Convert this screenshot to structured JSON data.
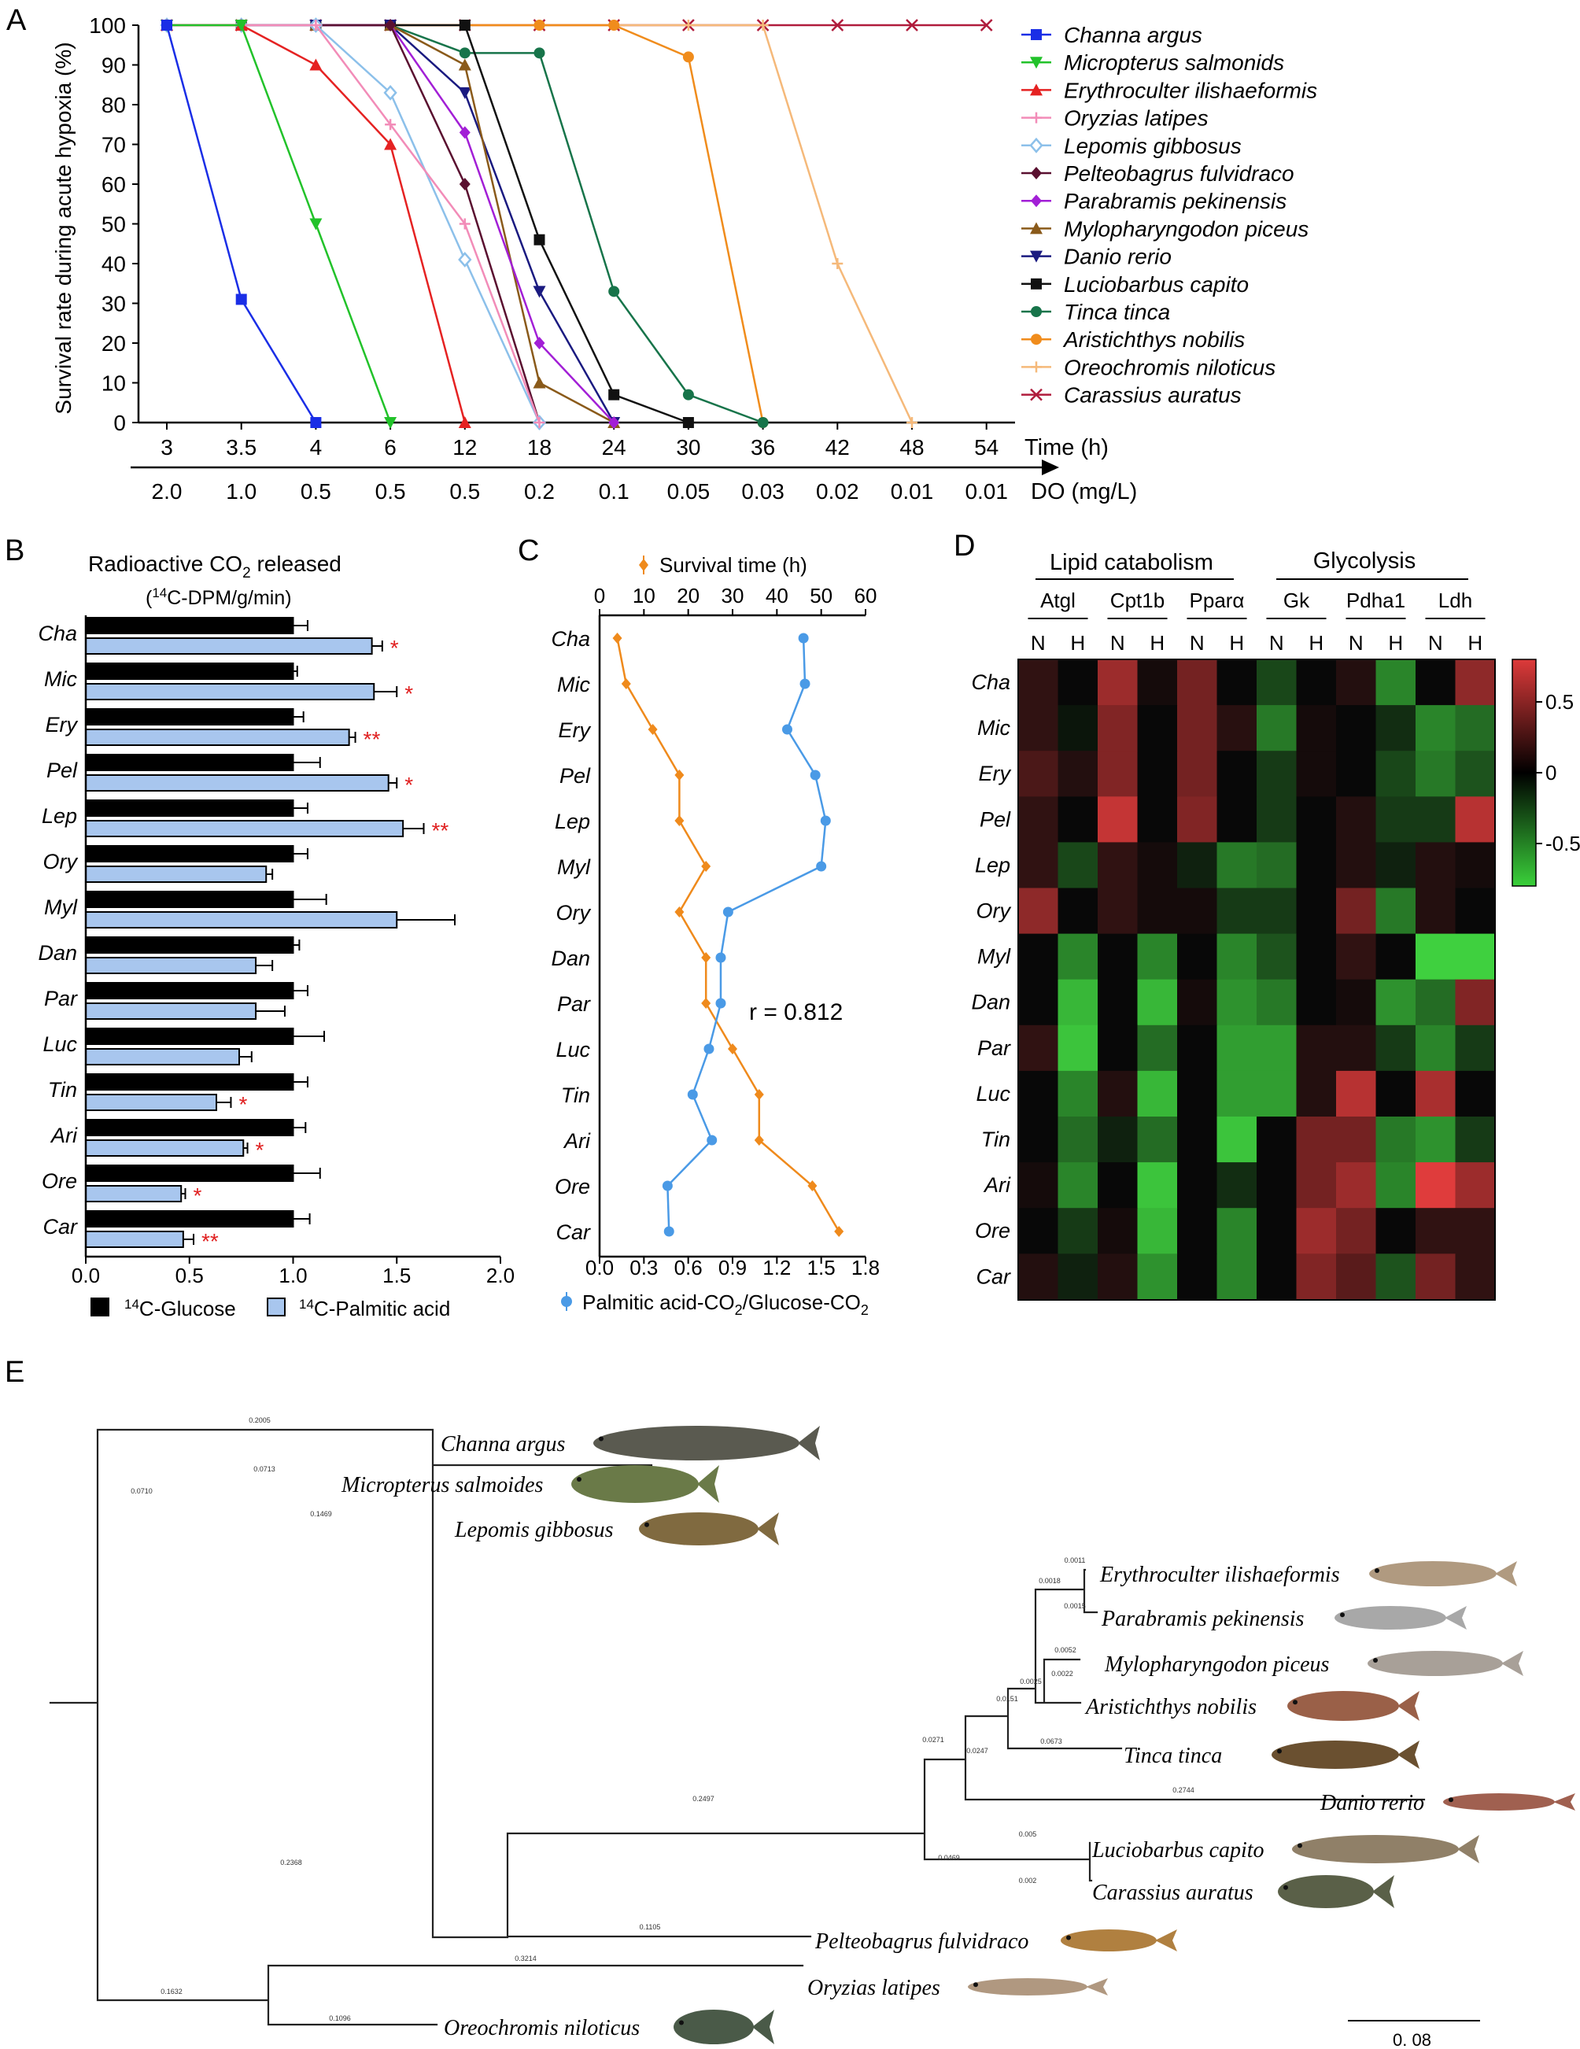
{
  "panel_letters": [
    "A",
    "B",
    "C",
    "D",
    "E"
  ],
  "chart_data": [
    {
      "id": "A",
      "type": "line",
      "ylabel": "Survival rate during acute hypoxia (%)",
      "ylim": [
        0,
        100
      ],
      "yticks": [
        "0",
        "10",
        "20",
        "30",
        "40",
        "50",
        "60",
        "70",
        "80",
        "90",
        "100"
      ],
      "x_time_label": "Time (h)",
      "x_do_label": "DO (mg/L)",
      "categories_time": [
        "3",
        "3.5",
        "4",
        "6",
        "12",
        "18",
        "24",
        "30",
        "36",
        "42",
        "48",
        "54"
      ],
      "categories_do": [
        "2.0",
        "1.0",
        "0.5",
        "0.5",
        "0.5",
        "0.2",
        "0.1",
        "0.05",
        "0.03",
        "0.02",
        "0.01",
        "0.01"
      ],
      "legend_position": "right",
      "series": [
        {
          "name": "Channa argus",
          "color": "#1a2ee6",
          "marker": "square",
          "values": [
            100,
            31,
            0
          ]
        },
        {
          "name": "Micropterus salmonids",
          "color": "#22c22a",
          "marker": "tri-down",
          "values": [
            100,
            100,
            50,
            0
          ]
        },
        {
          "name": "Erythroculter ilishaeformis",
          "color": "#e52222",
          "marker": "tri-up",
          "values": [
            100,
            100,
            90,
            70,
            0
          ]
        },
        {
          "name": "Oryzias latipes",
          "color": "#f28cb8",
          "marker": "plus",
          "values": [
            100,
            100,
            100,
            75,
            50,
            0
          ]
        },
        {
          "name": "Lepomis gibbosus",
          "color": "#8cc0ea",
          "marker": "diamond-open",
          "values": [
            100,
            100,
            100,
            83,
            41,
            0
          ]
        },
        {
          "name": "Pelteobagrus fulvidraco",
          "color": "#5a1030",
          "marker": "diamond",
          "values": [
            100,
            100,
            100,
            100,
            60,
            0
          ]
        },
        {
          "name": "Parabramis pekinensis",
          "color": "#a21fd6",
          "marker": "diamond",
          "values": [
            100,
            100,
            100,
            100,
            73,
            20,
            0
          ]
        },
        {
          "name": "Mylopharyngodon piceus",
          "color": "#8a5a1a",
          "marker": "tri-up",
          "values": [
            100,
            100,
            100,
            100,
            90,
            10,
            0
          ]
        },
        {
          "name": "Danio rerio",
          "color": "#1a1a80",
          "marker": "tri-down",
          "values": [
            100,
            100,
            100,
            100,
            83,
            33,
            0
          ]
        },
        {
          "name": "Luciobarbus capito",
          "color": "#111111",
          "marker": "square",
          "values": [
            100,
            100,
            100,
            100,
            100,
            46,
            7,
            0
          ]
        },
        {
          "name": "Tinca tinca",
          "color": "#17744a",
          "marker": "circle",
          "values": [
            100,
            100,
            100,
            100,
            93,
            93,
            33,
            7,
            0
          ]
        },
        {
          "name": "Aristichthys nobilis",
          "color": "#f08c1c",
          "marker": "circle",
          "values": [
            100,
            100,
            100,
            100,
            100,
            100,
            100,
            92,
            0
          ]
        },
        {
          "name": "Oreochromis niloticus",
          "color": "#f5b97a",
          "marker": "plus",
          "values": [
            100,
            100,
            100,
            100,
            100,
            100,
            100,
            100,
            100,
            40,
            0
          ]
        },
        {
          "name": "Carassius auratus",
          "color": "#b01c3c",
          "marker": "x",
          "values": [
            100,
            100,
            100,
            100,
            100,
            100,
            100,
            100,
            100,
            100,
            100,
            100
          ]
        }
      ]
    },
    {
      "id": "B",
      "type": "bar",
      "title": "Radioactive CO2 released",
      "title_main": "Radioactive CO",
      "title_sub": "2",
      "title_tail": " released",
      "subtitle": "(14C-DPM/g/min)",
      "subtitle_sup": "14",
      "subtitle_rest": "C-DPM/g/min)",
      "xlim": [
        0,
        2.0
      ],
      "xticks": [
        "0.0",
        "0.5",
        "1.0",
        "1.5",
        "2.0"
      ],
      "categories": [
        "Cha",
        "Mic",
        "Ery",
        "Pel",
        "Lep",
        "Ory",
        "Myl",
        "Dan",
        "Par",
        "Luc",
        "Tin",
        "Ari",
        "Ore",
        "Car"
      ],
      "series": [
        {
          "name": "14C-Glucose",
          "name_sup": "14",
          "name_rest": "C-Glucose",
          "color": "#000000",
          "values": [
            1.0,
            1.0,
            1.0,
            1.0,
            1.0,
            1.0,
            1.0,
            1.0,
            1.0,
            1.0,
            1.0,
            1.0,
            1.0,
            1.0
          ],
          "errors": [
            0.07,
            0.02,
            0.05,
            0.13,
            0.07,
            0.07,
            0.16,
            0.03,
            0.07,
            0.15,
            0.07,
            0.06,
            0.13,
            0.08
          ]
        },
        {
          "name": "14C-Palmitic acid",
          "name_sup": "14",
          "name_rest": "C-Palmitic acid",
          "color": "#a8c6ee",
          "values": [
            1.38,
            1.39,
            1.27,
            1.46,
            1.53,
            0.87,
            1.5,
            0.82,
            0.82,
            0.74,
            0.63,
            0.76,
            0.46,
            0.47
          ],
          "errors": [
            0.05,
            0.11,
            0.03,
            0.04,
            0.1,
            0.03,
            0.28,
            0.08,
            0.14,
            0.06,
            0.07,
            0.02,
            0.02,
            0.05
          ]
        }
      ],
      "significance": [
        "*",
        "*",
        "**",
        "*",
        "**",
        "",
        "",
        "",
        "",
        "",
        "*",
        "*",
        "*",
        "**"
      ],
      "legend_position": "bottom"
    },
    {
      "id": "C",
      "type": "line",
      "categories": [
        "Cha",
        "Mic",
        "Ery",
        "Pel",
        "Lep",
        "Myl",
        "Ory",
        "Dan",
        "Par",
        "Luc",
        "Tin",
        "Ari",
        "Ore",
        "Car"
      ],
      "top_axis_label": "Survival time (h)",
      "top_xlim": [
        0,
        60
      ],
      "top_ticks": [
        "0",
        "10",
        "20",
        "30",
        "40",
        "50",
        "60"
      ],
      "bottom_axis_label": "Palmitic acid-CO2/Glucose-CO2",
      "bottom_label_main": "Palmitic acid-CO",
      "bottom_label_sub1": "2",
      "bottom_label_mid": "/Glucose-CO",
      "bottom_label_sub2": "2",
      "bottom_xlim": [
        0,
        1.8
      ],
      "bottom_ticks": [
        "0.0",
        "0.3",
        "0.6",
        "0.9",
        "1.2",
        "1.5",
        "1.8"
      ],
      "survival_time": [
        4,
        6,
        12,
        18,
        18,
        24,
        18,
        24,
        24,
        30,
        36,
        36,
        48,
        54
      ],
      "ratio": [
        1.38,
        1.39,
        1.27,
        1.46,
        1.53,
        1.5,
        0.87,
        0.82,
        0.82,
        0.74,
        0.63,
        0.76,
        0.46,
        0.47
      ],
      "survival_color": "#ef8a1c",
      "ratio_color": "#4a9ae6",
      "annotation": "r = 0.812"
    },
    {
      "id": "D",
      "type": "heatmap",
      "groups": [
        "Lipid catabolism",
        "Glycolysis"
      ],
      "genes": [
        "Atgl",
        "Cpt1b",
        "Pparα",
        "Gk",
        "Pdha1",
        "Ldh"
      ],
      "conditions": [
        "N",
        "H"
      ],
      "rows": [
        "Cha",
        "Mic",
        "Ery",
        "Pel",
        "Lep",
        "Ory",
        "Myl",
        "Dan",
        "Par",
        "Luc",
        "Tin",
        "Ari",
        "Ore",
        "Car"
      ],
      "colorbar_ticks": [
        "0.5",
        "0",
        "-0.5"
      ],
      "zlim": [
        -0.8,
        0.8
      ],
      "values": [
        [
          0.15,
          0.0,
          0.55,
          0.05,
          0.4,
          0.0,
          -0.25,
          0.0,
          0.1,
          -0.5,
          0.0,
          0.5
        ],
        [
          0.15,
          -0.05,
          0.45,
          0.0,
          0.4,
          0.12,
          -0.45,
          0.05,
          0.0,
          -0.15,
          -0.5,
          -0.4
        ],
        [
          0.25,
          0.1,
          0.45,
          0.0,
          0.4,
          0.0,
          -0.2,
          0.05,
          0.0,
          -0.25,
          -0.45,
          -0.3
        ],
        [
          0.15,
          0.0,
          0.7,
          0.0,
          0.45,
          0.0,
          -0.2,
          0.0,
          0.1,
          -0.2,
          -0.2,
          0.65
        ],
        [
          0.15,
          -0.25,
          0.15,
          0.05,
          -0.1,
          -0.45,
          -0.4,
          0.0,
          0.1,
          -0.1,
          0.1,
          0.05
        ],
        [
          0.5,
          0.0,
          0.15,
          0.05,
          0.05,
          -0.2,
          -0.2,
          0.0,
          0.4,
          -0.45,
          0.1,
          0.0
        ],
        [
          0.0,
          -0.5,
          0.0,
          -0.5,
          0.0,
          -0.5,
          -0.3,
          0.0,
          0.15,
          0.0,
          -0.8,
          -0.8
        ],
        [
          0.0,
          -0.7,
          0.0,
          -0.7,
          0.05,
          -0.55,
          -0.45,
          0.0,
          0.05,
          -0.55,
          -0.4,
          0.45
        ],
        [
          0.15,
          -0.75,
          0.0,
          -0.4,
          0.0,
          -0.6,
          -0.6,
          0.1,
          0.1,
          -0.2,
          -0.5,
          -0.2
        ],
        [
          0.0,
          -0.5,
          0.1,
          -0.7,
          0.0,
          -0.6,
          -0.6,
          0.1,
          0.65,
          0.0,
          0.6,
          0.0
        ],
        [
          0.0,
          -0.4,
          -0.1,
          -0.4,
          0.0,
          -0.75,
          0.0,
          0.4,
          0.4,
          -0.45,
          -0.55,
          -0.2
        ],
        [
          0.05,
          -0.5,
          0.0,
          -0.75,
          0.0,
          -0.15,
          0.0,
          0.4,
          0.55,
          -0.5,
          0.8,
          0.55
        ],
        [
          0.0,
          -0.2,
          0.05,
          -0.7,
          0.0,
          -0.5,
          0.0,
          0.55,
          0.4,
          0.0,
          0.15,
          0.15
        ],
        [
          0.1,
          -0.1,
          0.1,
          -0.55,
          0.0,
          -0.5,
          0.0,
          0.45,
          0.3,
          -0.3,
          0.4,
          0.15
        ]
      ]
    }
  ],
  "tree": {
    "scale_label": "0. 08",
    "branch_labels": [
      "0.2005",
      "0.0713",
      "0.1469",
      "0.0710",
      "0.0011",
      "0.0015",
      "0.0018",
      "0.0052",
      "0.0022",
      "0.0025",
      "0.0151",
      "0.0247",
      "0.0673",
      "0.0271",
      "0.2744",
      "0.005",
      "0.002",
      "0.0469",
      "0.2497",
      "0.1105",
      "0.2368",
      "0.3214",
      "0.1096",
      "0.1632"
    ],
    "taxa": [
      "Channa argus",
      "Micropterus salmoides",
      "Lepomis gibbosus",
      "Erythroculter ilishaeformis",
      "Parabramis pekinensis",
      "Mylopharyngodon piceus",
      "Aristichthys nobilis",
      "Tinca tinca",
      "Danio rerio",
      "Luciobarbus capito",
      "Carassius auratus",
      "Pelteobagrus fulvidraco",
      "Oryzias latipes",
      "Oreochromis niloticus"
    ]
  }
}
